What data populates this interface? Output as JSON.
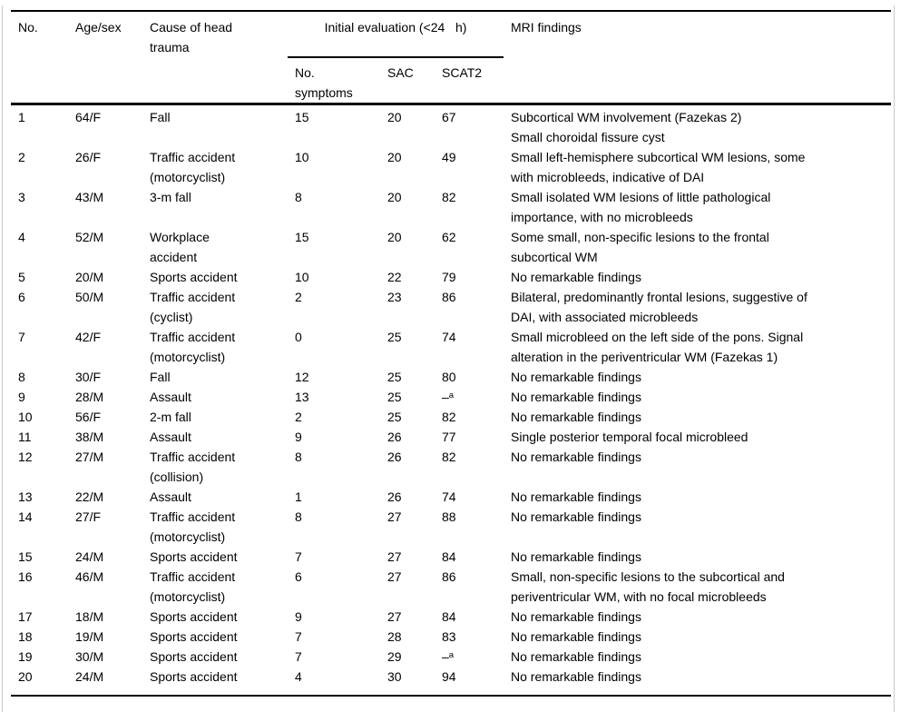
{
  "colors": {
    "text": "#000000",
    "rule": "#000000",
    "edge_line": "#c9c9c9",
    "background": "#ffffff"
  },
  "table": {
    "columns": {
      "no": "No.",
      "age_sex": "Age/sex",
      "cause": "Cause of head\ntrauma",
      "group": "Initial evaluation (<24   h)",
      "symptoms": "No.\nsymptoms",
      "sac": "SAC",
      "scat2": "SCAT2",
      "mri": "MRI findings"
    },
    "footnote_marker": "a",
    "rows": [
      {
        "no": "1",
        "age_sex": "64/F",
        "cause": "Fall",
        "symptoms": "15",
        "sac": "20",
        "scat2": "67",
        "mri": "Subcortical WM involvement (Fazekas 2)\nSmall choroidal fissure cyst"
      },
      {
        "no": "2",
        "age_sex": "26/F",
        "cause": "Traffic accident\n(motorcyclist)",
        "symptoms": "10",
        "sac": "20",
        "scat2": "49",
        "mri": "Small left-hemisphere subcortical WM lesions, some\nwith microbleeds, indicative of DAI"
      },
      {
        "no": "3",
        "age_sex": "43/M",
        "cause": "3-m fall",
        "symptoms": "8",
        "sac": "20",
        "scat2": "82",
        "mri": "Small isolated WM lesions of little pathological\nimportance, with no microbleeds"
      },
      {
        "no": "4",
        "age_sex": "52/M",
        "cause": "Workplace\naccident",
        "symptoms": "15",
        "sac": "20",
        "scat2": "62",
        "mri": "Some small, non-specific lesions to the frontal\nsubcortical WM"
      },
      {
        "no": "5",
        "age_sex": "20/M",
        "cause": "Sports accident",
        "symptoms": "10",
        "sac": "22",
        "scat2": "79",
        "mri": "No remarkable findings"
      },
      {
        "no": "6",
        "age_sex": "50/M",
        "cause": "Traffic accident\n(cyclist)",
        "symptoms": "2",
        "sac": "23",
        "scat2": "86",
        "mri": "Bilateral, predominantly frontal lesions, suggestive of\nDAI, with associated microbleeds"
      },
      {
        "no": "7",
        "age_sex": "42/F",
        "cause": "Traffic accident\n(motorcyclist)",
        "symptoms": "0",
        "sac": "25",
        "scat2": "74",
        "mri": "Small microbleed on the left side of the pons. Signal\nalteration in the periventricular WM (Fazekas 1)"
      },
      {
        "no": "8",
        "age_sex": "30/F",
        "cause": "Fall",
        "symptoms": "12",
        "sac": "25",
        "scat2": "80",
        "mri": "No remarkable findings"
      },
      {
        "no": "9",
        "age_sex": "28/M",
        "cause": "Assault",
        "symptoms": "13",
        "sac": "25",
        "scat2": "–^a",
        "mri": "No remarkable findings"
      },
      {
        "no": "10",
        "age_sex": "56/F",
        "cause": "2-m fall",
        "symptoms": "2",
        "sac": "25",
        "scat2": "82",
        "mri": "No remarkable findings"
      },
      {
        "no": "11",
        "age_sex": "38/M",
        "cause": "Assault",
        "symptoms": "9",
        "sac": "26",
        "scat2": "77",
        "mri": "Single posterior temporal focal microbleed"
      },
      {
        "no": "12",
        "age_sex": "27/M",
        "cause": "Traffic accident\n(collision)",
        "symptoms": "8",
        "sac": "26",
        "scat2": "82",
        "mri": "No remarkable findings"
      },
      {
        "no": "13",
        "age_sex": "22/M",
        "cause": "Assault",
        "symptoms": "1",
        "sac": "26",
        "scat2": "74",
        "mri": "No remarkable findings"
      },
      {
        "no": "14",
        "age_sex": "27/F",
        "cause": "Traffic accident\n(motorcyclist)",
        "symptoms": "8",
        "sac": "27",
        "scat2": "88",
        "mri": "No remarkable findings"
      },
      {
        "no": "15",
        "age_sex": "24/M",
        "cause": "Sports accident",
        "symptoms": "7",
        "sac": "27",
        "scat2": "84",
        "mri": "No remarkable findings"
      },
      {
        "no": "16",
        "age_sex": "46/M",
        "cause": "Traffic accident\n(motorcyclist)",
        "symptoms": "6",
        "sac": "27",
        "scat2": "86",
        "mri": "Small, non-specific lesions to the subcortical and\nperiventricular WM, with no focal microbleeds"
      },
      {
        "no": "17",
        "age_sex": "18/M",
        "cause": "Sports accident",
        "symptoms": "9",
        "sac": "27",
        "scat2": "84",
        "mri": "No remarkable findings"
      },
      {
        "no": "18",
        "age_sex": "19/M",
        "cause": "Sports accident",
        "symptoms": "7",
        "sac": "28",
        "scat2": "83",
        "mri": "No remarkable findings"
      },
      {
        "no": "19",
        "age_sex": "30/M",
        "cause": "Sports accident",
        "symptoms": "7",
        "sac": "29",
        "scat2": "–^a",
        "mri": "No remarkable findings"
      },
      {
        "no": "20",
        "age_sex": "24/M",
        "cause": "Sports accident",
        "symptoms": "4",
        "sac": "30",
        "scat2": "94",
        "mri": "No remarkable findings"
      }
    ]
  }
}
